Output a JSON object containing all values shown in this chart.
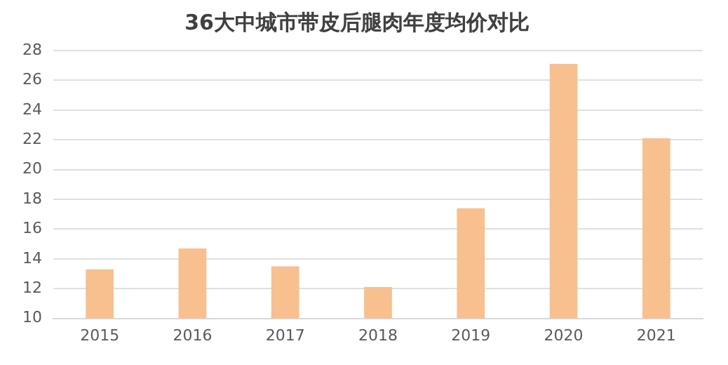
{
  "chart_data": {
    "type": "bar",
    "title": "36大中城市带皮后腿肉年度均价对比",
    "categories": [
      "2015",
      "2016",
      "2017",
      "2018",
      "2019",
      "2020",
      "2021"
    ],
    "values": [
      13.3,
      14.7,
      13.5,
      12.1,
      17.4,
      27.1,
      22.1
    ],
    "color": "#f8bf8f",
    "ylim": [
      10,
      28
    ],
    "yticks": [
      10,
      12,
      14,
      16,
      18,
      20,
      22,
      24,
      26,
      28
    ],
    "grid": "y"
  }
}
